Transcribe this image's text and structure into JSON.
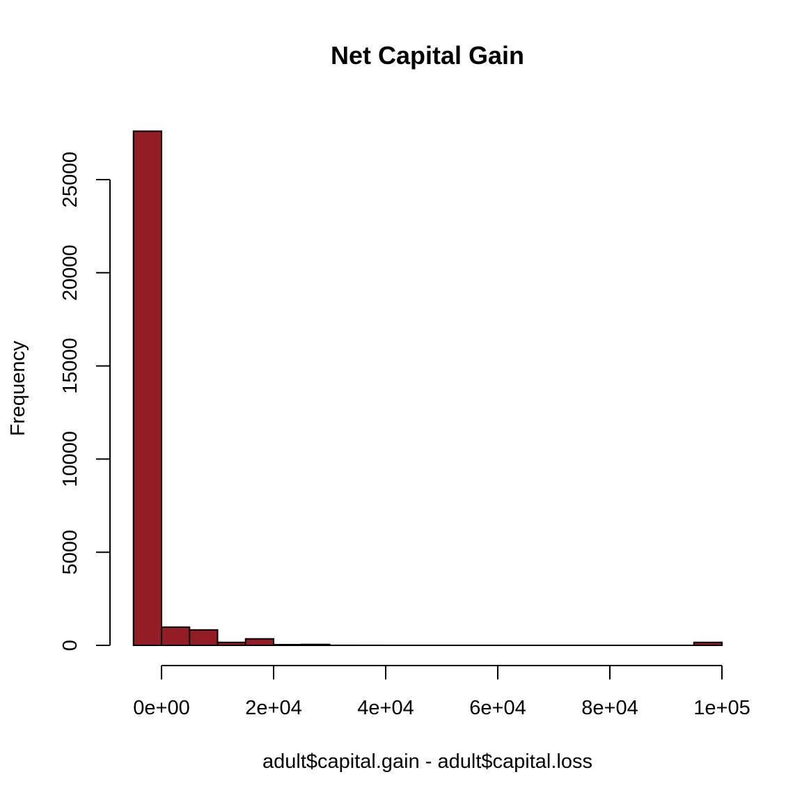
{
  "chart_data": {
    "type": "bar",
    "title": "Net Capital Gain",
    "xlabel": "adult$capital.gain - adult$capital.loss",
    "ylabel": "Frequency",
    "bin_edges": [
      -5000,
      0,
      5000,
      10000,
      15000,
      20000,
      25000,
      30000,
      35000,
      40000,
      45000,
      50000,
      55000,
      60000,
      65000,
      70000,
      75000,
      80000,
      85000,
      90000,
      95000,
      100000
    ],
    "values": [
      27600,
      980,
      830,
      160,
      350,
      40,
      50,
      5,
      3,
      2,
      2,
      1,
      1,
      1,
      1,
      1,
      1,
      1,
      1,
      1,
      160
    ],
    "xlim": [
      -5000,
      100000
    ],
    "ylim": [
      0,
      27600
    ],
    "x_ticks": [
      0,
      20000,
      40000,
      60000,
      80000,
      100000
    ],
    "x_tick_labels": [
      "0e+00",
      "2e+04",
      "4e+04",
      "6e+04",
      "8e+04",
      "1e+05"
    ],
    "y_ticks": [
      0,
      5000,
      10000,
      15000,
      20000,
      25000
    ],
    "y_tick_labels": [
      "0",
      "5000",
      "10000",
      "15000",
      "20000",
      "25000"
    ],
    "bar_color": "#931d24",
    "grid": false,
    "legend": "none"
  }
}
